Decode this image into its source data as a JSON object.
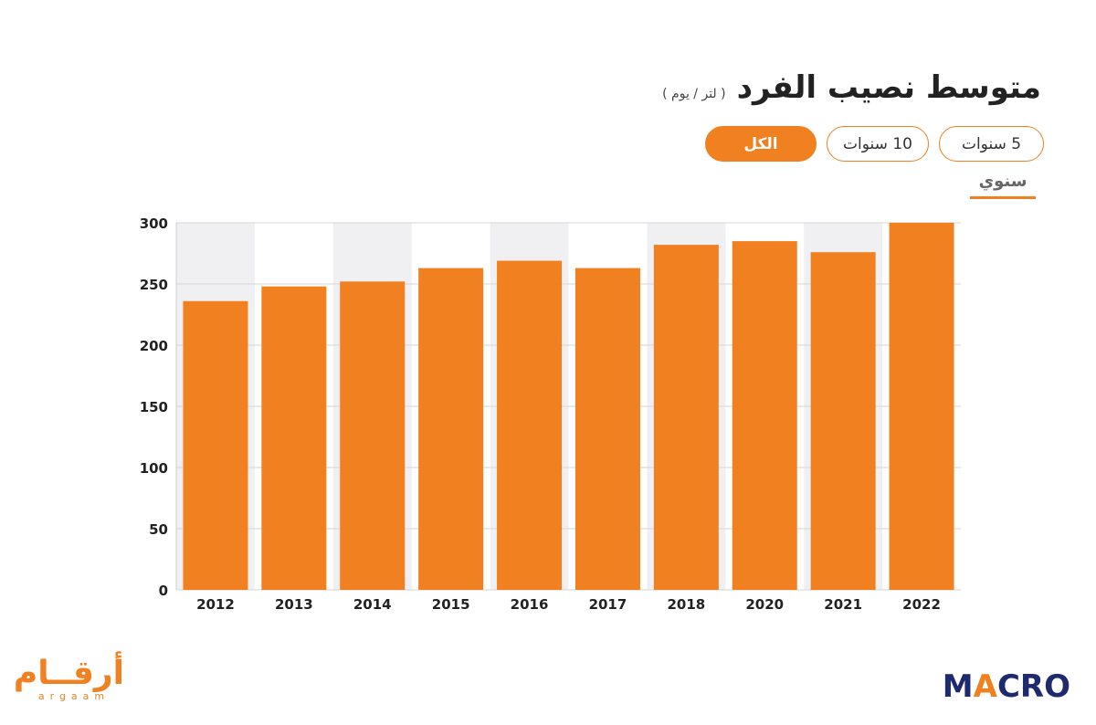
{
  "header": {
    "title": "متوسط نصيب الفرد",
    "subtitle": "( لتر / يوم )"
  },
  "filters": {
    "five_years": "5 سنوات",
    "ten_years": "10 سنوات",
    "all": "الكل"
  },
  "period_tab": "سنوي",
  "branding": {
    "left_logo_ar": "أرقــام",
    "left_logo_en": "argaam",
    "right_logo": "MACRO"
  },
  "colors": {
    "accent": "#f08020",
    "brand_dark": "#1e2a6e"
  },
  "chart_data": {
    "type": "bar",
    "categories": [
      "2012",
      "2013",
      "2014",
      "2015",
      "2016",
      "2017",
      "2018",
      "2020",
      "2021",
      "2022"
    ],
    "values": [
      236,
      248,
      252,
      263,
      269,
      263,
      282,
      285,
      276,
      300
    ],
    "title": "متوسط نصيب الفرد",
    "ylabel": "( لتر / يوم )",
    "xlabel": "",
    "ylim": [
      0,
      300
    ],
    "yticks": [
      0,
      50,
      100,
      150,
      200,
      250,
      300
    ],
    "grid": true,
    "bar_color": "#f08020",
    "band_color": "#f0f0f3"
  }
}
